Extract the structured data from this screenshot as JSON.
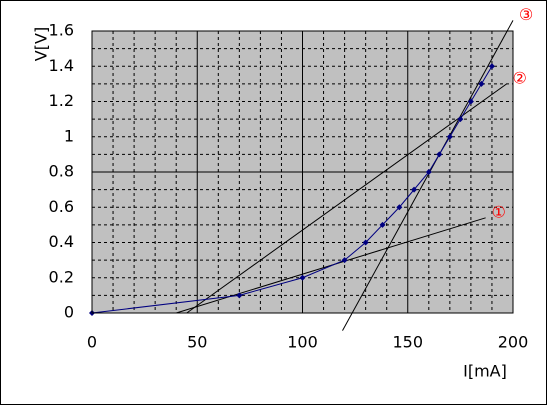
{
  "chart_data": {
    "type": "line",
    "x_label": "I[mA]",
    "y_label": "V[V]",
    "series": [
      {
        "color": "#000080",
        "x": [
          0,
          70,
          100,
          120,
          130,
          138,
          146,
          153,
          160,
          165,
          170,
          175,
          180,
          185,
          190
        ],
        "values": [
          0,
          0.1,
          0.2,
          0.3,
          0.4,
          0.5,
          0.6,
          0.7,
          0.8,
          0.9,
          1.0,
          1.1,
          1.2,
          1.3,
          1.4
        ]
      }
    ],
    "fit_lines": [
      {
        "label": "①",
        "x": [
          40,
          187
        ],
        "y": [
          0,
          0.54
        ]
      },
      {
        "label": "②",
        "x": [
          45,
          197
        ],
        "y": [
          0,
          1.3
        ]
      },
      {
        "label": "③",
        "x": [
          119,
          200
        ],
        "y": [
          -0.1,
          1.66
        ]
      }
    ],
    "fit_color": "#000000",
    "label_color": "#ff0000",
    "xlim": [
      0,
      200
    ],
    "xticks": [
      0,
      50,
      100,
      150,
      200
    ],
    "ylim": [
      0,
      1.6
    ],
    "yticks": [
      0,
      0.2,
      0.4,
      0.6,
      0.8,
      1,
      1.2,
      1.4,
      1.6
    ],
    "grid": true
  }
}
